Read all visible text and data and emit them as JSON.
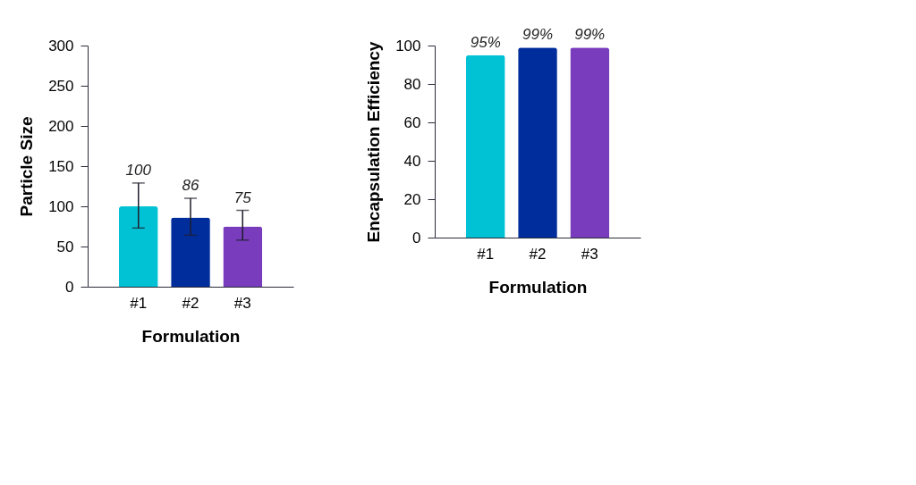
{
  "chart_data": [
    {
      "type": "bar",
      "xlabel": "Formulation",
      "ylabel": "Particle Size",
      "categories": [
        "#1",
        "#2",
        "#3"
      ],
      "values": [
        100,
        86,
        75
      ],
      "colors": [
        "#00c2d4",
        "#002d9c",
        "#783cbd"
      ],
      "errors": [
        [
          73,
          129
        ],
        [
          64,
          110
        ],
        [
          58,
          95
        ]
      ],
      "ylim": [
        0,
        300
      ],
      "yticks": [
        0,
        50,
        100,
        150,
        200,
        250,
        300
      ],
      "data_labels": true,
      "grid": false
    },
    {
      "type": "bar",
      "xlabel": "Formulation",
      "ylabel": "Encapsulation Efficiency",
      "categories": [
        "#1",
        "#2",
        "#3"
      ],
      "values": [
        95,
        99,
        99
      ],
      "colors": [
        "#00c2d4",
        "#002d9c",
        "#783cbd"
      ],
      "value_labels": [
        "95%",
        "99%",
        "99%"
      ],
      "ylim": [
        0,
        100
      ],
      "yticks": [
        0,
        20,
        40,
        60,
        80,
        100
      ],
      "grid": false
    }
  ]
}
